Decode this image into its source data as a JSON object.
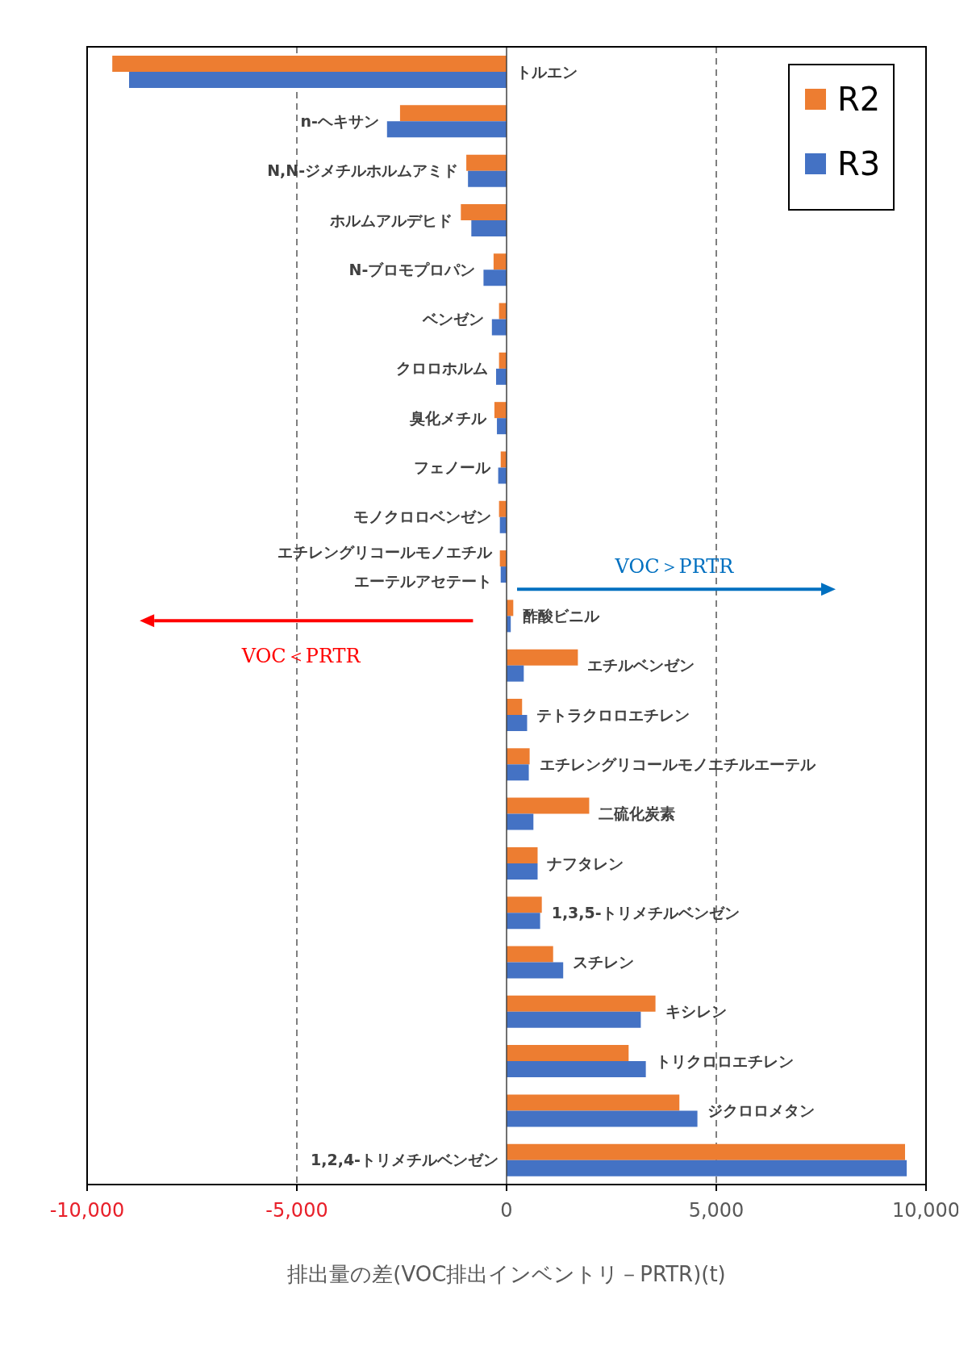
{
  "chart_data": {
    "type": "bar",
    "orientation": "horizontal",
    "xlabel": "排出量の差(VOC排出インベントリ－PRTR)(t)",
    "categories": [
      "トルエン",
      "n-ヘキサン",
      "N,N-ジメチルホルムアミド",
      "ホルムアルデヒド",
      "N-ブロモプロパン",
      "ベンゼン",
      "クロロホルム",
      "臭化メチル",
      "フェノール",
      "モノクロロベンゼン",
      "エチレングリコールモノエチルエーテルアセテート",
      "酢酸ビニル",
      "エチルベンゼン",
      "テトラクロロエチレン",
      "エチレングリコールモノエチルエーテル",
      "二硫化炭素",
      "ナフタレン",
      "1,3,5-トリメチルベンゼン",
      "スチレン",
      "キシレン",
      "トリクロロエチレン",
      "ジクロロメタン",
      "1,2,4-トリメチルベンゼン"
    ],
    "series": [
      {
        "name": "R2",
        "color": "#ed7d31",
        "values": [
          -9400,
          -2540,
          -960,
          -1090,
          -310,
          -180,
          -180,
          -290,
          -140,
          -180,
          -160,
          160,
          1700,
          370,
          550,
          1970,
          740,
          840,
          1110,
          3550,
          2910,
          4120,
          9500
        ]
      },
      {
        "name": "R3",
        "color": "#4472c4",
        "values": [
          -9000,
          -2850,
          -920,
          -840,
          -550,
          -350,
          -250,
          -230,
          -200,
          -160,
          -140,
          100,
          410,
          490,
          530,
          640,
          740,
          800,
          1350,
          3200,
          3320,
          4550,
          9540
        ]
      }
    ],
    "xlim": [
      -10000,
      10000
    ],
    "xticks": [
      {
        "value": -10000,
        "label": "-10,000"
      },
      {
        "value": -5000,
        "label": "-5,000"
      },
      0,
      {
        "value": 5000,
        "label": "5,000"
      },
      {
        "value": 10000,
        "label": "10,000"
      }
    ],
    "grid": "x",
    "legend": "top right",
    "annotations": [
      "VOC＞PRTR",
      "VOC＜PRTR"
    ]
  }
}
